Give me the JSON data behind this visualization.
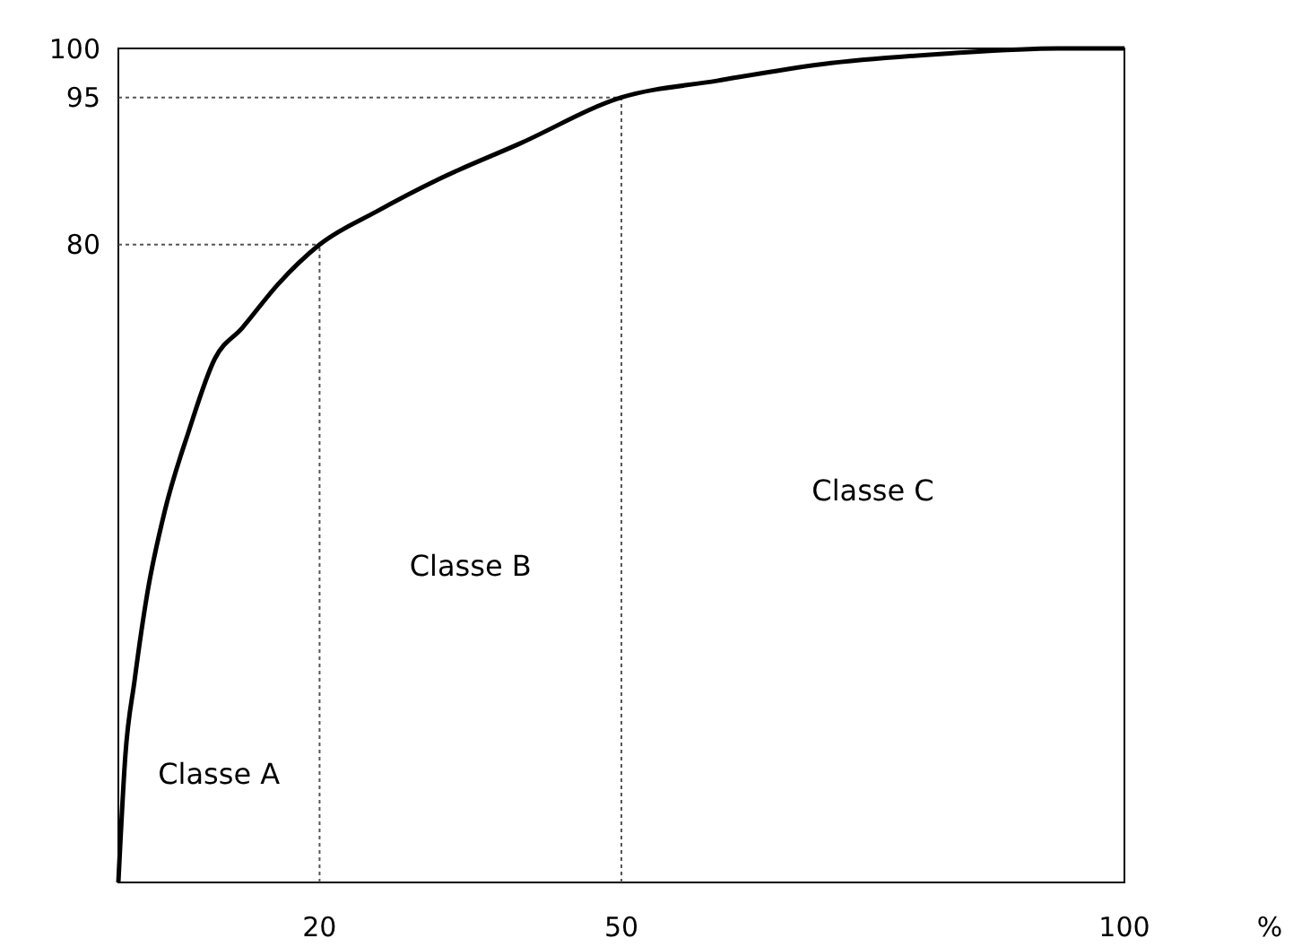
{
  "chart_data": {
    "type": "line",
    "xlabel": "%",
    "xlim": [
      0,
      100
    ],
    "xticks": [
      20,
      50,
      100
    ],
    "ylim": [
      15,
      100
    ],
    "yticks": [
      80,
      95,
      100
    ],
    "grid": false,
    "marker": "none",
    "line_style": "solid",
    "x": [
      0,
      0.7,
      1.6,
      2.9,
      4.6,
      7,
      9.6,
      12.3,
      15.9,
      20,
      25.7,
      31.9,
      39.9,
      50,
      59.5,
      70,
      82.7,
      93.4,
      100
    ],
    "series": [
      {
        "color": "#000000",
        "values": [
          15,
          28,
          35.5,
          44.6,
          52.8,
          61,
          68.4,
          71.5,
          76,
          80,
          83.4,
          86.7,
          90.3,
          95,
          96.7,
          98.4,
          99.5,
          100,
          100
        ]
      }
    ],
    "ref_lines": [
      {
        "axis": "y",
        "value": 80,
        "line_style": "dotted"
      },
      {
        "axis": "y",
        "value": 95,
        "line_style": "dotted"
      },
      {
        "axis": "x",
        "value": 20,
        "line_style": "dotted"
      },
      {
        "axis": "x",
        "value": 50,
        "line_style": "dotted"
      }
    ],
    "annotations": [
      "Classe A",
      "Classe B",
      "Classe C"
    ]
  }
}
